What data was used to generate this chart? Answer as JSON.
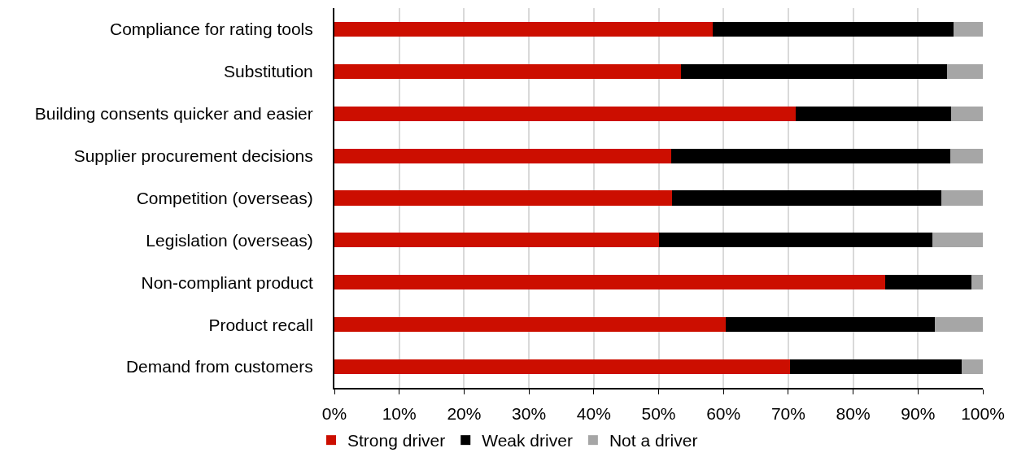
{
  "chart_data": {
    "type": "bar",
    "orientation": "horizontal",
    "stacked": true,
    "categories": [
      "Compliance for rating tools",
      "Substitution",
      "Building consents quicker and easier",
      "Supplier procurement decisions",
      "Competition (overseas)",
      "Legislation (overseas)",
      "Non-compliant product",
      "Product recall",
      "Demand from customers"
    ],
    "series": [
      {
        "name": "Strong driver",
        "color": "#cc0e00",
        "values": [
          58.3,
          53.5,
          71.2,
          51.9,
          52.1,
          50.0,
          84.9,
          60.3,
          70.3
        ]
      },
      {
        "name": "Weak driver",
        "color": "#000000",
        "values": [
          37.2,
          41.0,
          23.9,
          43.1,
          41.5,
          42.2,
          13.3,
          32.3,
          26.4
        ]
      },
      {
        "name": "Not a driver",
        "color": "#a6a6a6",
        "values": [
          4.5,
          5.5,
          4.9,
          5.0,
          6.4,
          7.8,
          1.8,
          7.4,
          3.3
        ]
      }
    ],
    "xlim": [
      0,
      100
    ],
    "xticks": [
      {
        "value": 0,
        "label": "0%"
      },
      {
        "value": 10,
        "label": "10%"
      },
      {
        "value": 20,
        "label": "20%"
      },
      {
        "value": 30,
        "label": "30%"
      },
      {
        "value": 40,
        "label": "40%"
      },
      {
        "value": 50,
        "label": "50%"
      },
      {
        "value": 60,
        "label": "60%"
      },
      {
        "value": 70,
        "label": "70%"
      },
      {
        "value": 80,
        "label": "80%"
      },
      {
        "value": 90,
        "label": "90%"
      },
      {
        "value": 100,
        "label": "100%"
      }
    ],
    "grid": "x",
    "legend": "bottom"
  }
}
